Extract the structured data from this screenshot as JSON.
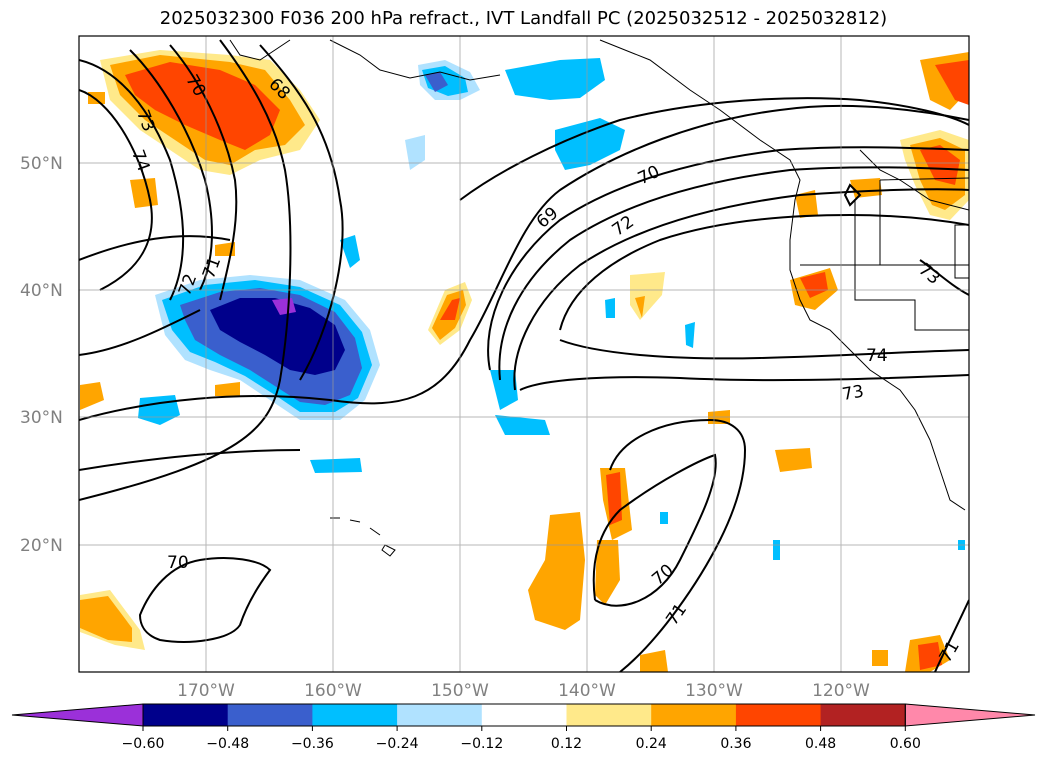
{
  "title": "2025032300 F036 200 hPa refract., IVT Landfall PC (2025032512 - 2025032812)",
  "lat_labels": [
    "50°N",
    "40°N",
    "30°N",
    "20°N"
  ],
  "lon_labels": [
    "170°W",
    "160°W",
    "150°W",
    "140°W",
    "130°W",
    "120°W"
  ],
  "colorbar": {
    "ticks": [
      "−0.60",
      "−0.48",
      "−0.36",
      "−0.24",
      "−0.12",
      "0.12",
      "0.24",
      "0.36",
      "0.48",
      "0.60"
    ],
    "colors": [
      "#9b30d9",
      "#00008b",
      "#3a5fcd",
      "#00bfff",
      "#b0e2ff",
      "#ffffff",
      "#ffe98a",
      "#ffa500",
      "#ff4500",
      "#b22222",
      "#ff88aa"
    ]
  },
  "contour_labels": [
    "70",
    "68",
    "73",
    "74",
    "72",
    "71",
    "69",
    "70",
    "72",
    "74",
    "73",
    "73",
    "70",
    "70",
    "71",
    "71"
  ],
  "colors": {
    "purple": "#9b30d9",
    "navy": "#00008b",
    "blue": "#3a5fcd",
    "cyan": "#00bfff",
    "lightblue": "#b0e2ff",
    "yellow": "#ffe98a",
    "orange": "#ffa500",
    "redorange": "#ff4500",
    "darkred": "#b22222",
    "pink": "#ff88aa"
  }
}
